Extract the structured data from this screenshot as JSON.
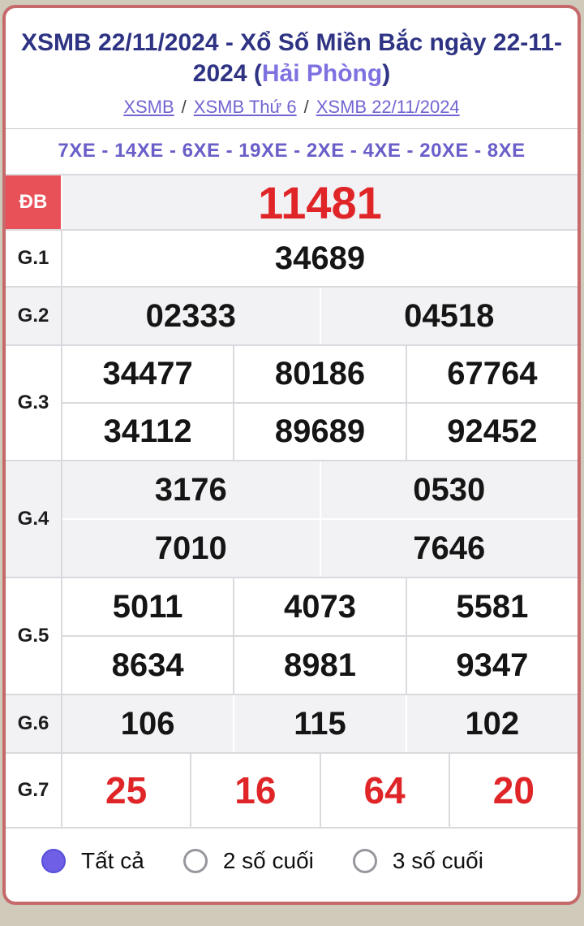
{
  "header": {
    "title_main": "XSMB 22/11/2024 - Xổ Số Miền Bắc ngày 22-11-2024",
    "title_paren_open": " (",
    "title_province": "Hải Phòng",
    "title_paren_close": ")",
    "breadcrumb": {
      "items": [
        "XSMB",
        "XSMB Thứ 6",
        "XSMB 22/11/2024"
      ],
      "separator": "/"
    },
    "codes_line": "7XE - 14XE - 6XE - 19XE - 2XE - 4XE - 20XE - 8XE"
  },
  "results": {
    "prizes": [
      {
        "id": "db",
        "label": "ĐB",
        "rows": [
          [
            "11481"
          ]
        ]
      },
      {
        "id": "g1",
        "label": "G.1",
        "rows": [
          [
            "34689"
          ]
        ]
      },
      {
        "id": "g2",
        "label": "G.2",
        "rows": [
          [
            "02333",
            "04518"
          ]
        ]
      },
      {
        "id": "g3",
        "label": "G.3",
        "rows": [
          [
            "34477",
            "80186",
            "67764"
          ],
          [
            "34112",
            "89689",
            "92452"
          ]
        ]
      },
      {
        "id": "g4",
        "label": "G.4",
        "rows": [
          [
            "3176",
            "0530"
          ],
          [
            "7010",
            "7646"
          ]
        ]
      },
      {
        "id": "g5",
        "label": "G.5",
        "rows": [
          [
            "5011",
            "4073",
            "5581"
          ],
          [
            "8634",
            "8981",
            "9347"
          ]
        ]
      },
      {
        "id": "g6",
        "label": "G.6",
        "rows": [
          [
            "106",
            "115",
            "102"
          ]
        ]
      },
      {
        "id": "g7",
        "label": "G.7",
        "rows": [
          [
            "25",
            "16",
            "64",
            "20"
          ]
        ]
      }
    ]
  },
  "filters": {
    "options": [
      {
        "label": "Tất cả",
        "selected": true
      },
      {
        "label": "2 số cuối",
        "selected": false
      },
      {
        "label": "3 số cuối",
        "selected": false
      }
    ]
  },
  "colors": {
    "page_background": "#cfcaba",
    "card_border_red": "#c6696b",
    "title_navy": "#2e3383",
    "link_purple": "#7165d2",
    "province_purple": "#7e71e0",
    "codes_purple": "#6a5fc9",
    "special_label_bg": "#e85157",
    "red_number": "#e02528",
    "gray_row_bg": "#f2f2f5",
    "cell_border": "#dadade",
    "radio_selected": "#6e5fe6"
  }
}
